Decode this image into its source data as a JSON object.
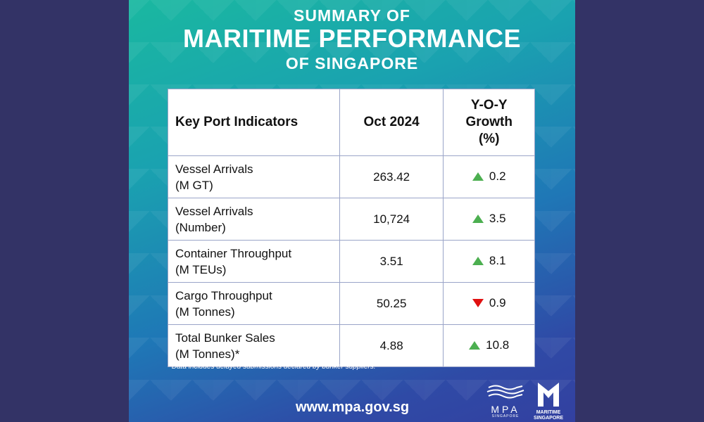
{
  "header": {
    "line1": "SUMMARY OF",
    "line2": "MARITIME PERFORMANCE",
    "line3": "OF SINGAPORE"
  },
  "table": {
    "headers": {
      "indicator": "Key Port Indicators",
      "period": "Oct 2024",
      "growth_l1": "Y-O-Y",
      "growth_l2": "Growth",
      "growth_l3": "(%)"
    },
    "rows": [
      {
        "label": "Vessel Arrivals",
        "unit": "(M GT)",
        "value": "263.42",
        "growth": "0.2",
        "direction": "up"
      },
      {
        "label": "Vessel Arrivals",
        "unit": "(Number)",
        "value": "10,724",
        "growth": "3.5",
        "direction": "up"
      },
      {
        "label": "Container Throughput",
        "unit": "(M TEUs)",
        "value": "3.51",
        "growth": "8.1",
        "direction": "up"
      },
      {
        "label": "Cargo Throughput",
        "unit": "(M Tonnes)",
        "value": "50.25",
        "growth": "0.9",
        "direction": "down"
      },
      {
        "label": "Total Bunker Sales",
        "unit": "(M Tonnes)*",
        "value": "4.88",
        "growth": "10.8",
        "direction": "up"
      }
    ]
  },
  "footnote": "*Data includes delayed submissions declared by bunker suppliers.",
  "url": "www.mpa.gov.sg",
  "logos": {
    "mpa_name": "MPA",
    "mpa_sub": "SINGAPORE",
    "ms_line1": "MARITIME",
    "ms_line2": "SINGAPORE"
  },
  "colors": {
    "up": "#4caf50",
    "down": "#e01010",
    "frame": "#333366"
  }
}
